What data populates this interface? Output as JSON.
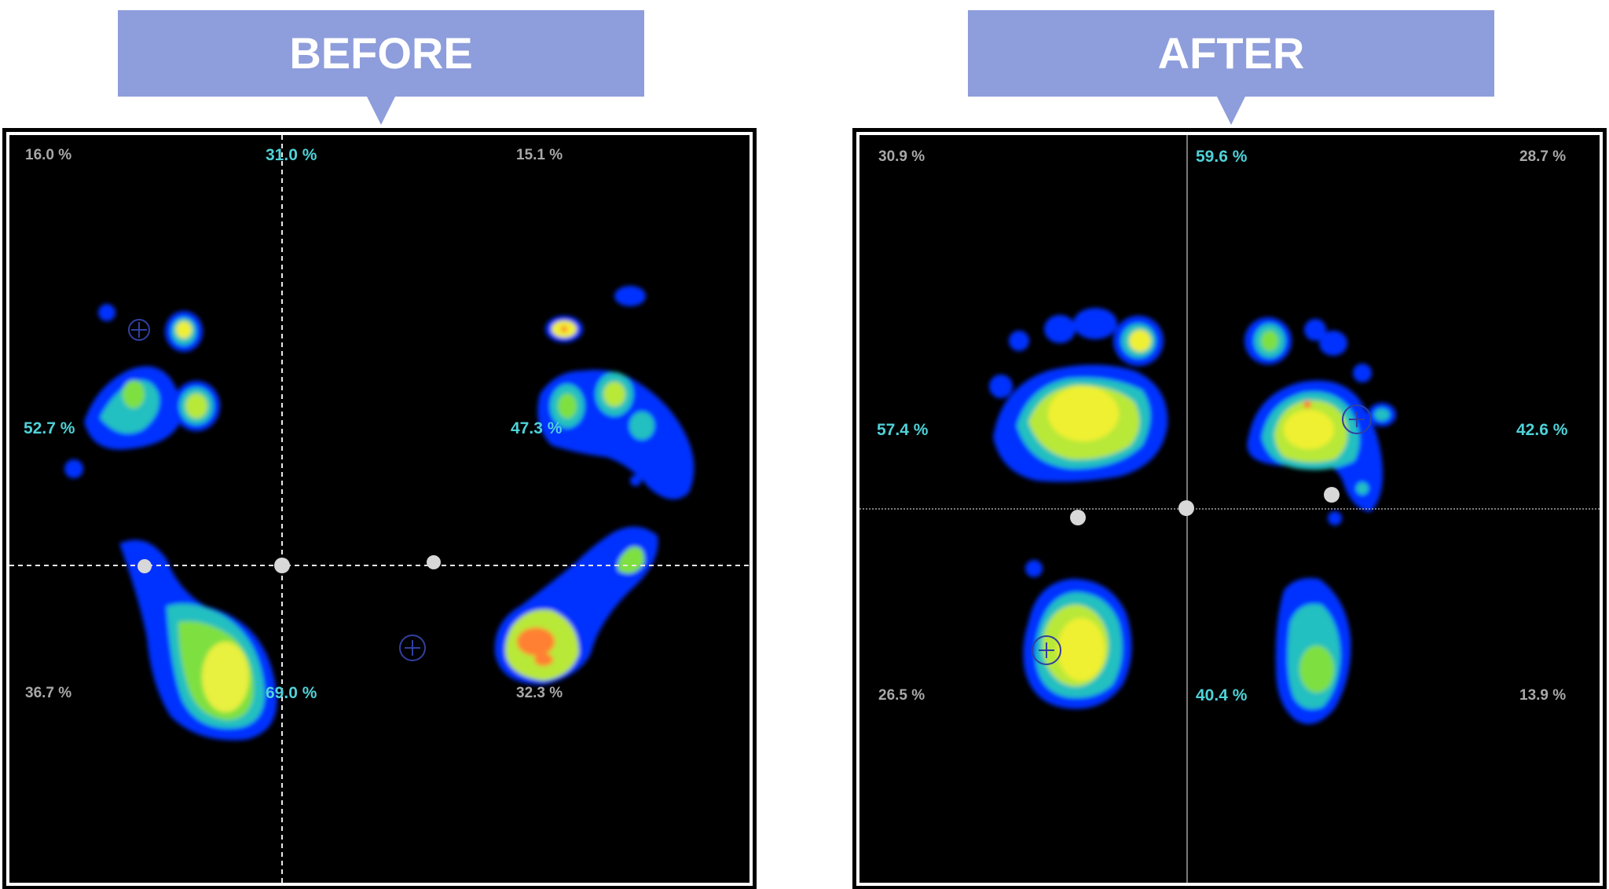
{
  "before": {
    "title": "BEFORE",
    "percentages": {
      "top_left": "16.0 %",
      "top_center": "31.0 %",
      "top_right": "15.1 %",
      "mid_left": "52.7 %",
      "mid_right": "47.3 %",
      "bottom_left": "36.7 %",
      "bottom_center": "69.0 %",
      "bottom_right": "32.3 %"
    }
  },
  "after": {
    "title": "AFTER",
    "percentages": {
      "top_left": "30.9 %",
      "top_center": "59.6 %",
      "top_right": "28.7 %",
      "mid_left": "57.4 %",
      "mid_right": "42.6 %",
      "bottom_left": "26.5 %",
      "bottom_center": "40.4 %",
      "bottom_right": "13.9 %"
    }
  },
  "colors": {
    "banner": "#8e9ddb",
    "pressure_low": "#0033ff",
    "pressure_mid": "#22c0c0",
    "pressure_high": "#f0f030",
    "pressure_peak": "#ff8030",
    "label_cyan": "#4fd2d8",
    "label_gray": "#a8a8a8"
  }
}
